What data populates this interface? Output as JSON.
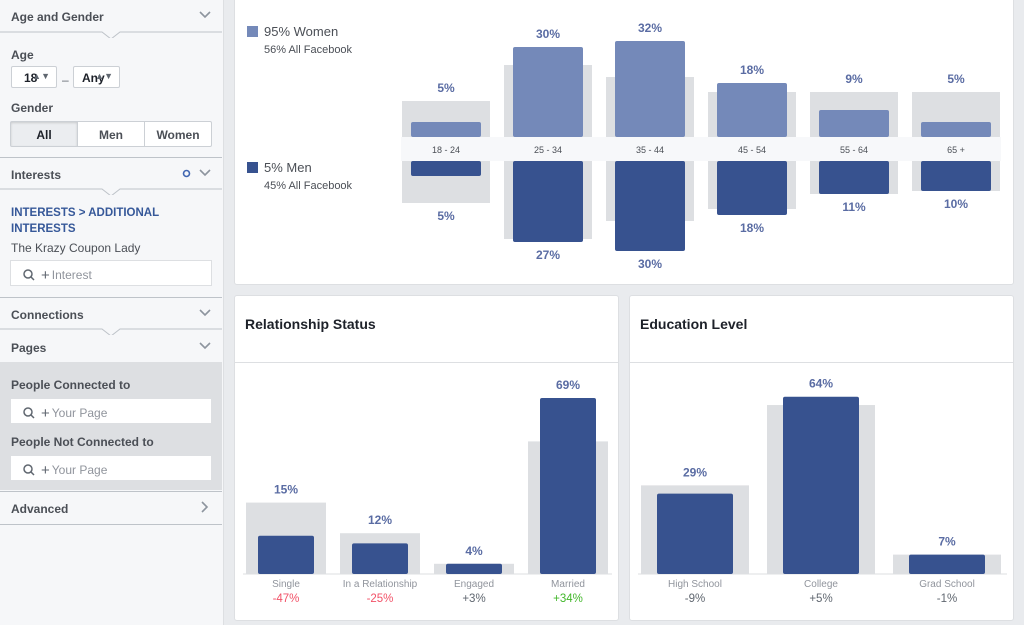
{
  "sidebar": {
    "age_gender": {
      "title": "Age and Gender",
      "age_label": "Age",
      "age_min": "18",
      "age_max": "Any",
      "gender_label": "Gender",
      "gender_options": [
        "All",
        "Men",
        "Women"
      ],
      "gender_selected": "All"
    },
    "interests": {
      "title": "Interests",
      "breadcrumb": "INTERESTS > ADDITIONAL INTERESTS",
      "items": [
        "The Krazy Coupon Lady"
      ],
      "search_placeholder": "Interest"
    },
    "connections": {
      "title": "Connections"
    },
    "pages": {
      "title": "Pages",
      "connected_label": "People Connected to",
      "connected_placeholder": "Your Page",
      "not_connected_label": "People Not Connected to",
      "not_connected_placeholder": "Your Page"
    },
    "advanced": {
      "title": "Advanced"
    }
  },
  "age_panel": {
    "women_legend": "95% Women",
    "women_sub": "56% All Facebook",
    "men_legend": "5% Men",
    "men_sub": "45% All Facebook"
  },
  "relationship_panel": {
    "title": "Relationship Status"
  },
  "education_panel": {
    "title": "Education Level"
  },
  "colors": {
    "women": "#7489b9",
    "men": "#37528f",
    "benchmark": "#dddfe2",
    "value_label": "#5a6ca3",
    "negative": "#f25268",
    "positive": "#42b72a",
    "neutral": "#606770"
  },
  "chart_data": [
    {
      "type": "bar",
      "name": "age",
      "categories": [
        "18 - 24",
        "25 - 34",
        "35 - 44",
        "45 - 54",
        "55 - 64",
        "65 +"
      ],
      "series": [
        {
          "name": "95% Women",
          "values": [
            5,
            30,
            32,
            18,
            9,
            5
          ],
          "labels": [
            "5%",
            "30%",
            "32%",
            "18%",
            "9%",
            "5%"
          ]
        },
        {
          "name": "5% Men",
          "values": [
            5,
            27,
            30,
            18,
            11,
            10
          ],
          "labels": [
            "5%",
            "27%",
            "30%",
            "18%",
            "11%",
            "10%"
          ]
        }
      ],
      "benchmark": {
        "women": [
          12,
          24,
          20,
          15,
          15,
          15
        ],
        "men": [
          14,
          26,
          20,
          16,
          11,
          10
        ]
      }
    },
    {
      "type": "bar",
      "name": "relationship",
      "title": "Relationship Status",
      "categories": [
        "Single",
        "In a Relationship",
        "Engaged",
        "Married"
      ],
      "values": [
        15,
        12,
        4,
        69
      ],
      "value_labels": [
        "15%",
        "12%",
        "4%",
        "69%"
      ],
      "benchmark": [
        28,
        16,
        4,
        52
      ],
      "deltas": [
        "-47%",
        "-25%",
        "+3%",
        "+34%"
      ],
      "delta_kind": [
        "negative",
        "negative",
        "neutral",
        "positive"
      ]
    },
    {
      "type": "bar",
      "name": "education",
      "title": "Education Level",
      "categories": [
        "High School",
        "College",
        "Grad School"
      ],
      "values": [
        29,
        64,
        7
      ],
      "value_labels": [
        "29%",
        "64%",
        "7%"
      ],
      "benchmark": [
        32,
        61,
        7
      ],
      "deltas": [
        "-9%",
        "+5%",
        "-1%"
      ],
      "delta_kind": [
        "neutral",
        "neutral",
        "neutral"
      ]
    }
  ]
}
